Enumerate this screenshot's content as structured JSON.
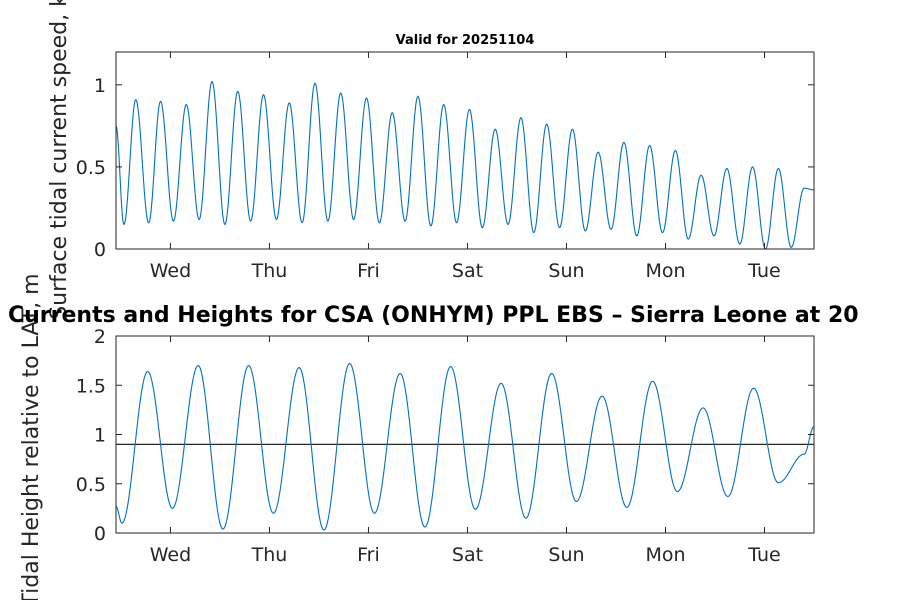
{
  "figure": {
    "main_title": "Currents and Heights for CSA (ONHYM) PPL EBS  – Sierra Leone at 20",
    "line_color": "#0072BD",
    "reference_line_color": "#262626"
  },
  "chart_data": [
    {
      "type": "line",
      "title": "Valid for 20251104",
      "ylabel": "Surface tidal current speed, kn",
      "xlabel": "",
      "x_unit": "days",
      "xlim": [
        0,
        7.05
      ],
      "ylim": [
        0,
        1.2
      ],
      "yticks": [
        0,
        0.5,
        1
      ],
      "ytick_labels": [
        "0",
        "0.5",
        "1"
      ],
      "xticks": [
        0.55,
        1.55,
        2.55,
        3.55,
        4.55,
        5.55,
        6.55
      ],
      "xtick_labels": [
        "Wed",
        "Thu",
        "Fri",
        "Sat",
        "Sun",
        "Mon",
        "Tue"
      ],
      "series": [
        {
          "name": "current speed",
          "x": [
            0.0,
            0.08,
            0.2,
            0.33,
            0.45,
            0.58,
            0.71,
            0.84,
            0.97,
            1.1,
            1.23,
            1.36,
            1.49,
            1.62,
            1.75,
            1.88,
            2.01,
            2.14,
            2.27,
            2.4,
            2.53,
            2.66,
            2.79,
            2.92,
            3.05,
            3.18,
            3.31,
            3.44,
            3.57,
            3.7,
            3.83,
            3.96,
            4.09,
            4.22,
            4.35,
            4.48,
            4.61,
            4.74,
            4.87,
            5.0,
            5.13,
            5.26,
            5.39,
            5.52,
            5.65,
            5.78,
            5.91,
            6.04,
            6.17,
            6.3,
            6.43,
            6.56,
            6.69,
            6.82,
            6.95,
            7.05
          ],
          "values": [
            0.75,
            0.15,
            0.91,
            0.16,
            0.9,
            0.17,
            0.88,
            0.18,
            1.02,
            0.15,
            0.96,
            0.17,
            0.94,
            0.18,
            0.89,
            0.16,
            1.01,
            0.17,
            0.95,
            0.18,
            0.92,
            0.16,
            0.83,
            0.17,
            0.93,
            0.14,
            0.88,
            0.16,
            0.85,
            0.13,
            0.73,
            0.15,
            0.8,
            0.1,
            0.76,
            0.13,
            0.73,
            0.11,
            0.59,
            0.12,
            0.65,
            0.08,
            0.63,
            0.1,
            0.6,
            0.06,
            0.45,
            0.08,
            0.49,
            0.03,
            0.5,
            0.0,
            0.49,
            0.01,
            0.37,
            0.36
          ]
        }
      ]
    },
    {
      "type": "line",
      "title": "",
      "ylabel": "Tidal Height relative to LAT, m",
      "xlabel": "",
      "x_unit": "days",
      "xlim": [
        0,
        7.05
      ],
      "ylim": [
        0,
        2
      ],
      "yticks": [
        0,
        0.5,
        1,
        1.5,
        2
      ],
      "ytick_labels": [
        "0",
        "0.5",
        "1",
        "1.5",
        "2"
      ],
      "xticks": [
        0.55,
        1.55,
        2.55,
        3.55,
        4.55,
        5.55,
        6.55
      ],
      "xtick_labels": [
        "Wed",
        "Thu",
        "Fri",
        "Sat",
        "Sun",
        "Mon",
        "Tue"
      ],
      "reference_level": 0.9,
      "series": [
        {
          "name": "tidal height",
          "x": [
            0.0,
            0.06,
            0.32,
            0.57,
            0.83,
            1.08,
            1.34,
            1.59,
            1.85,
            2.1,
            2.36,
            2.61,
            2.87,
            3.12,
            3.38,
            3.63,
            3.89,
            4.14,
            4.4,
            4.65,
            4.91,
            5.16,
            5.42,
            5.67,
            5.93,
            6.18,
            6.44,
            6.69,
            6.95,
            7.05
          ],
          "values": [
            0.27,
            0.1,
            1.64,
            0.25,
            1.7,
            0.04,
            1.7,
            0.2,
            1.68,
            0.03,
            1.72,
            0.2,
            1.62,
            0.06,
            1.69,
            0.24,
            1.52,
            0.15,
            1.62,
            0.32,
            1.39,
            0.26,
            1.54,
            0.42,
            1.27,
            0.37,
            1.47,
            0.51,
            0.8,
            1.08
          ]
        }
      ]
    }
  ]
}
